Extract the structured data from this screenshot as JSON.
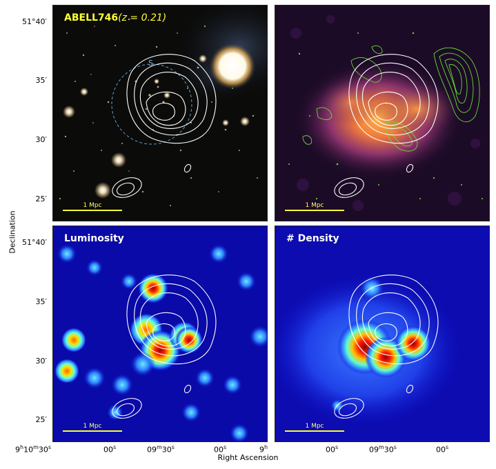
{
  "panels": {
    "top_left": {
      "cluster_name": "ABELL746",
      "redshift": "(z = 0.21)",
      "marker_label": "S",
      "scalebar_label": "1 Mpc"
    },
    "top_right": {
      "scalebar_label": "1 Mpc"
    },
    "bottom_left": {
      "title": "Luminosity",
      "scalebar_label": "1 Mpc"
    },
    "bottom_right": {
      "title": "# Density",
      "scalebar_label": "1 Mpc"
    }
  },
  "axes": {
    "ylabel": "Declination",
    "xlabel": "Right Ascension",
    "yticks_top": [
      "51°40′",
      "35′",
      "30′",
      "25′"
    ],
    "yticks_bottom": [
      "51°40′",
      "35′",
      "30′",
      "25′"
    ],
    "xticks_left": [
      "9h10m30s",
      "00s",
      "09m30s",
      "00s"
    ],
    "xticks_right": [
      "9h",
      "00s",
      "09m30s",
      "00s"
    ]
  },
  "colors": {
    "contour_white": "#ffffff",
    "radio_contour_green": "#66dd33",
    "title_yellow": "#ffff33",
    "dashed_circle": "#5aa0d0",
    "density_background": "#1010c8"
  }
}
